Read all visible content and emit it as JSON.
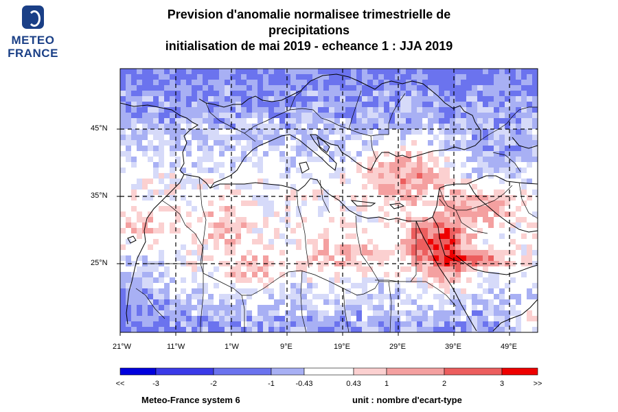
{
  "logo": {
    "line1": "METEO",
    "line2": "FRANCE"
  },
  "title": {
    "line1": "Prevision d'anomalie normalisee trimestrielle de",
    "line2": "precipitations",
    "line3": "initialisation de mai 2019  -  echeance 1 : JJA 2019"
  },
  "map": {
    "lon_range": [
      -21,
      54
    ],
    "lat_range": [
      15,
      50
    ],
    "lon_ticks": [
      "21°W",
      "11°W",
      "1°W",
      "9°E",
      "19°E",
      "29°E",
      "39°E",
      "49°E"
    ],
    "lat_ticks": [
      "45°N",
      "35°N",
      "25°N"
    ],
    "grid": "dashed"
  },
  "colorbar": {
    "labels": [
      "<<",
      "-3",
      "-2",
      "-1",
      "-0.43",
      "0.43",
      "1",
      "2",
      "3",
      ">>"
    ],
    "colors": [
      "#0000dd",
      "#3a3ae8",
      "#6b73ee",
      "#a8b0f4",
      "#d6daf9",
      "#ffffff",
      "#fbd0d0",
      "#f4a0a0",
      "#ec5e5e",
      "#ee0000"
    ]
  },
  "footer": {
    "model": "Meteo-France system 6",
    "unit": "unit : nombre d'ecart-type"
  }
}
